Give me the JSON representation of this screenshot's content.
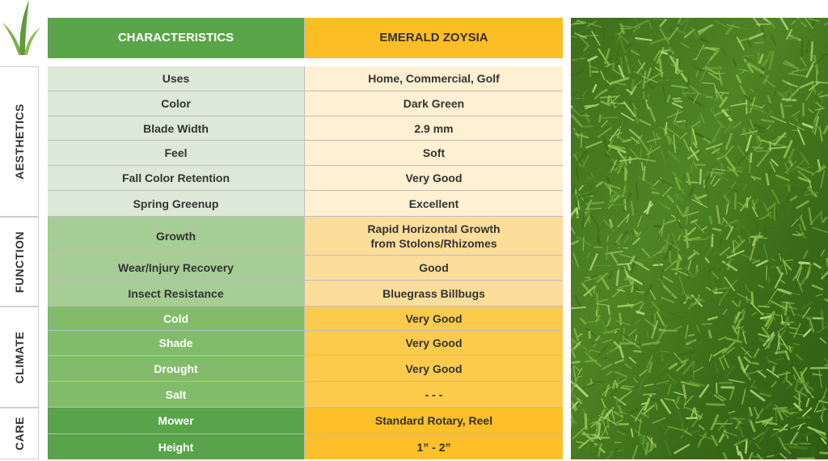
{
  "table": {
    "header": {
      "characteristics": "CHARACTERISTICS",
      "variety": "EMERALD ZOYSIA"
    },
    "sections": [
      {
        "name": "AESTHETICS",
        "rows": [
          {
            "label": "Uses",
            "value": "Home, Commercial, Golf"
          },
          {
            "label": "Color",
            "value": "Dark Green"
          },
          {
            "label": "Blade Width",
            "value": "2.9 mm"
          },
          {
            "label": "Feel",
            "value": "Soft"
          },
          {
            "label": "Fall Color Retention",
            "value": "Very Good"
          },
          {
            "label": "Spring Greenup",
            "value": "Excellent"
          }
        ]
      },
      {
        "name": "FUNCTION",
        "rows": [
          {
            "label": "Growth",
            "value": "Rapid Horizontal Growth\nfrom Stolons/Rhizomes"
          },
          {
            "label": "Wear/Injury Recovery",
            "value": "Good"
          },
          {
            "label": "Insect Resistance",
            "value": "Bluegrass Billbugs"
          }
        ]
      },
      {
        "name": "CLIMATE",
        "rows": [
          {
            "label": "Cold",
            "value": "Very Good"
          },
          {
            "label": "Shade",
            "value": "Very Good"
          },
          {
            "label": "Drought",
            "value": "Very Good"
          },
          {
            "label": "Salt",
            "value": "- - -"
          }
        ]
      },
      {
        "name": "CARE",
        "rows": [
          {
            "label": "Mower",
            "value": "Standard Rotary, Reel"
          },
          {
            "label": "Height",
            "value": "1” - 2”"
          }
        ]
      }
    ]
  },
  "colors": {
    "header_green": "#5aa54a",
    "header_yellow": "#fdbd24",
    "aesthetics": [
      "#dde9d8",
      "#fef0d2"
    ],
    "function": [
      "#a6cd95",
      "#fddd9a"
    ],
    "climate": [
      "#82bb6a",
      "#fdcb4c"
    ],
    "care": [
      "#59a34a",
      "#fdbf2a"
    ]
  },
  "icons": {
    "logo": "grass-blades-icon"
  },
  "images": {
    "photo": "grass-turf-photo"
  }
}
